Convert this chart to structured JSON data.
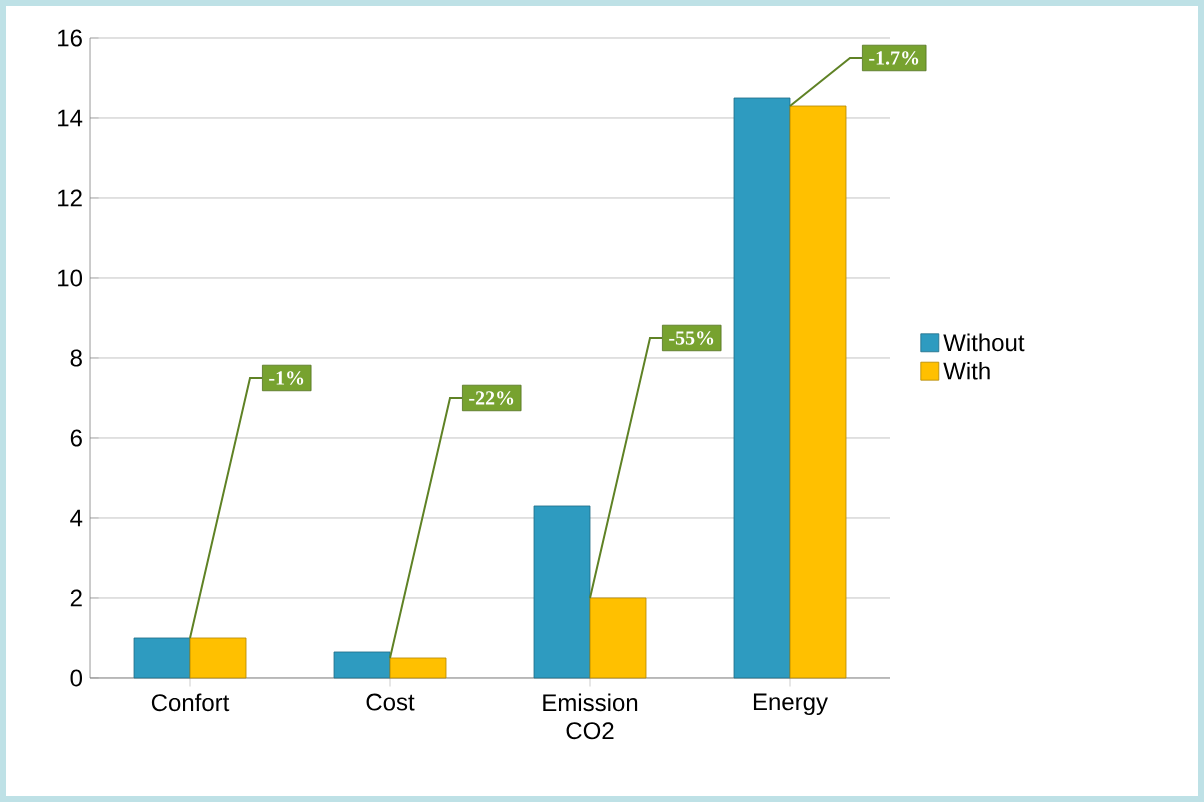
{
  "chart_data": {
    "type": "bar",
    "categories": [
      "Confort",
      "Cost",
      "Emission CO2",
      "Energy"
    ],
    "series": [
      {
        "name": "Without",
        "color": "#2e9bc0",
        "values": [
          1.0,
          0.65,
          4.3,
          14.5
        ]
      },
      {
        "name": "With",
        "color": "#ffc000",
        "values": [
          1.0,
          0.5,
          2.0,
          14.3
        ]
      }
    ],
    "ylim": [
      0,
      16
    ],
    "yticks": [
      0,
      2,
      4,
      6,
      8,
      10,
      12,
      14,
      16
    ],
    "grid": "y",
    "legend": "right",
    "annotations": [
      {
        "text": "-1%",
        "x": "Confort",
        "y": 1.0
      },
      {
        "text": "-22%",
        "x": "Cost",
        "y": 0.5
      },
      {
        "text": "-55%",
        "x": "Emission CO2",
        "y": 2.0
      },
      {
        "text": "-1.7%",
        "x": "Energy",
        "y": 14.3
      }
    ]
  }
}
